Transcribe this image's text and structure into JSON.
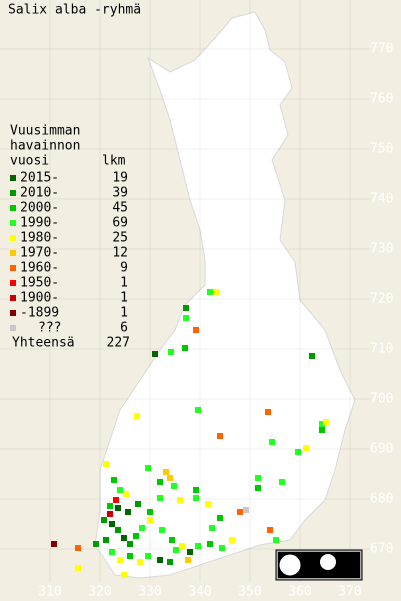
{
  "title": "Salix alba -ryhmä",
  "legend": {
    "heading": [
      "Vuusimman",
      "havainnon",
      "vuosi"
    ],
    "count_header": "lkm",
    "rows": [
      {
        "label": "2015-",
        "count": 19,
        "color": "#006400"
      },
      {
        "label": "2010-",
        "count": 39,
        "color": "#009a00"
      },
      {
        "label": "2000-",
        "count": 45,
        "color": "#00c800"
      },
      {
        "label": "1990-",
        "count": 69,
        "color": "#22ff22"
      },
      {
        "label": "1980-",
        "count": 25,
        "color": "#ffff00"
      },
      {
        "label": "1970-",
        "count": 12,
        "color": "#ffc800"
      },
      {
        "label": "1960-",
        "count": 9,
        "color": "#ff6400"
      },
      {
        "label": "1950-",
        "count": 1,
        "color": "#ff0000"
      },
      {
        "label": "1900-",
        "count": 1,
        "color": "#c80000"
      },
      {
        "label": "-1899",
        "count": 1,
        "color": "#800000"
      },
      {
        "label": "???",
        "count": 6,
        "color": "#c8c8c8"
      }
    ],
    "total_label": "Yhteensä",
    "total": 227
  },
  "grid": {
    "northing": [
      770,
      760,
      750,
      740,
      730,
      720,
      710,
      700,
      690,
      680,
      670
    ],
    "easting": [
      310,
      320,
      330,
      340,
      350,
      360,
      370
    ]
  }
}
